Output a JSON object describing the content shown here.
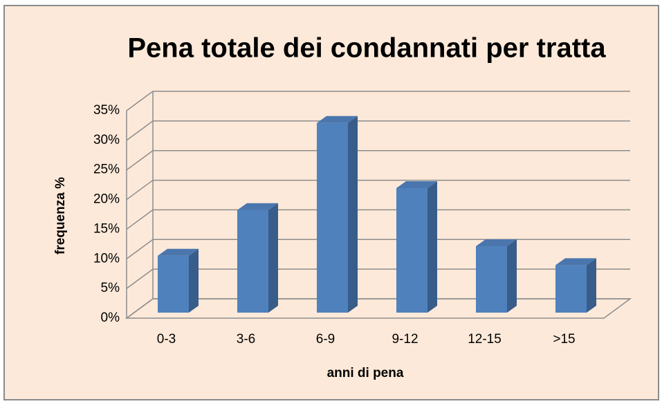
{
  "chart_data": {
    "type": "bar3d",
    "title": "Pena totale dei condannati per tratta",
    "xlabel": "anni di pena",
    "ylabel": "frequenza %",
    "categories": [
      "0-3",
      "3-6",
      "6-9",
      "9-12",
      "12-15",
      ">15"
    ],
    "values": [
      9.6,
      17.3,
      32,
      21,
      11.2,
      8
    ],
    "color": "#4f81bd",
    "ylim": [
      0,
      35
    ],
    "yticks": [
      {
        "value": 0,
        "label": "0%"
      },
      {
        "value": 5,
        "label": "5%"
      },
      {
        "value": 10,
        "label": "10%"
      },
      {
        "value": 15,
        "label": "15%"
      },
      {
        "value": 20,
        "label": "20%"
      },
      {
        "value": 25,
        "label": "25%"
      },
      {
        "value": 30,
        "label": "30%"
      },
      {
        "value": 35,
        "label": "35%"
      }
    ],
    "grid": true
  }
}
